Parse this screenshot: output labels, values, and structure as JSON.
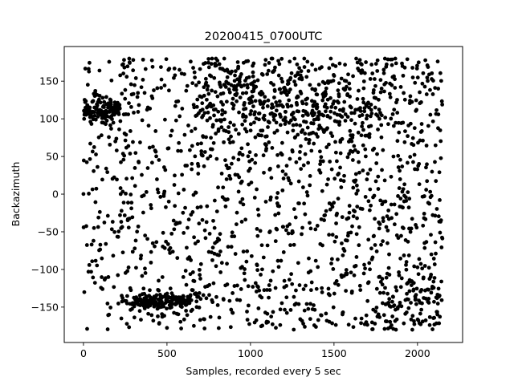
{
  "chart_data": {
    "type": "scatter",
    "title": "20200415_0700UTC",
    "xlabel": "Samples, recorded every 5 sec",
    "ylabel": "Backazimuth",
    "xlim": [
      -115,
      2270
    ],
    "ylim": [
      -197,
      196
    ],
    "xticks": [
      0,
      500,
      1000,
      1500,
      2000
    ],
    "xtick_labels": [
      "0",
      "500",
      "1000",
      "1500",
      "2000"
    ],
    "yticks": [
      -150,
      -100,
      -50,
      0,
      50,
      100,
      150
    ],
    "ytick_labels": [
      "−150",
      "−100",
      "−50",
      "0",
      "50",
      "100",
      "150"
    ],
    "grid": false,
    "marker_color": "#000000",
    "n_points": 2150,
    "points": "generated from sample index series: one backazimuth estimate per sample (0..2149); dense clusters near 100 to 130 and near -150 to -130 for samples 0 to 700, scattered elsewhere in [-180, 180]"
  }
}
